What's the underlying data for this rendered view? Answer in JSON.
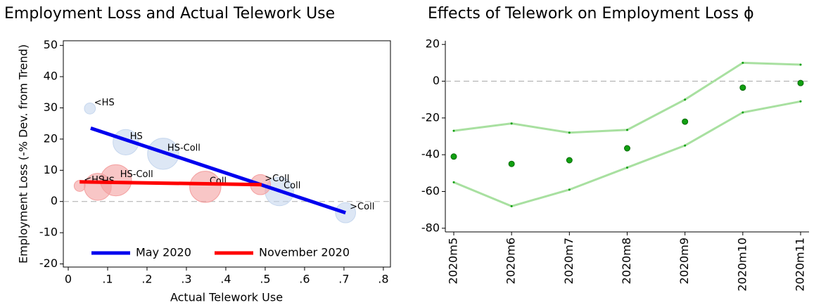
{
  "chart_data": [
    {
      "type": "bubble",
      "title": "Employment Loss and Actual Telework Use",
      "x_label": "Actual Telework Use",
      "y_label": "Employment Loss (-% Dev. from Trend)",
      "xlim": [
        -0.0125,
        0.818
      ],
      "ylim": [
        -21,
        51.5
      ],
      "xticks": [
        0,
        {
          "value": 0.1,
          "label": ".1"
        },
        {
          "value": 0.2,
          "label": ".2"
        },
        {
          "value": 0.3,
          "label": ".3"
        },
        {
          "value": 0.4,
          "label": ".4"
        },
        {
          "value": 0.5,
          "label": ".5"
        },
        {
          "value": 0.6,
          "label": ".6"
        },
        {
          "value": 0.7,
          "label": ".7"
        },
        {
          "value": 0.8,
          "label": ".8"
        }
      ],
      "yticks": [
        -20,
        -10,
        0,
        10,
        20,
        30,
        40,
        50
      ],
      "hline": 0,
      "legend": "bottom",
      "series": [
        {
          "name": "May 2020",
          "color": "#0000ee",
          "fill": "#c6d7ee",
          "label_color": "#1e78d6",
          "labels": [
            "<HS",
            "HS",
            "HS-Coll",
            "Coll",
            ">Coll"
          ],
          "x": [
            0.055,
            0.146,
            0.241,
            0.536,
            0.704
          ],
          "values": [
            29.8,
            19,
            15.3,
            3.2,
            -3.6
          ],
          "sizes": [
            6,
            32,
            48,
            40,
            20
          ],
          "fit": {
            "x": [
              0.057,
              0.704
            ],
            "values": [
              23.5,
              -3.6
            ]
          }
        },
        {
          "name": "November 2020",
          "color": "#ff0000",
          "fill": "#f4a0a0",
          "label_color": "#ff0000",
          "labels": [
            "<HS",
            "HS",
            "HS-Coll",
            "Coll",
            ">Coll"
          ],
          "x": [
            0.029,
            0.075,
            0.121,
            0.348,
            0.488
          ],
          "values": [
            5,
            4.7,
            6.8,
            4.7,
            5.4
          ],
          "sizes": [
            6,
            36,
            48,
            48,
            20
          ],
          "fit": {
            "x": [
              0.029,
              0.491
            ],
            "values": [
              6.3,
              5.4
            ]
          }
        }
      ]
    },
    {
      "type": "scatter",
      "title": "Effects of Telework on Employment Loss ϕ",
      "categories": [
        "2020m5",
        "2020m6",
        "2020m7",
        "2020m8",
        "2020m9",
        "2020m10",
        "2020m11"
      ],
      "ylim": [
        -82,
        22
      ],
      "yticks": [
        -80,
        -60,
        -40,
        -20,
        0,
        20
      ],
      "hline": 0,
      "series": [
        {
          "color": "#a8e0a0",
          "style": "line",
          "values": [
            -27,
            -23,
            -28,
            -26.5,
            -10,
            10,
            9
          ]
        },
        {
          "color": "#a8e0a0",
          "style": "line",
          "values": [
            -55,
            -68,
            -59,
            -47,
            -35,
            -17,
            -11
          ]
        },
        {
          "color": "#11a011",
          "style": "markers",
          "values": [
            -41,
            -45,
            -43,
            -36.5,
            -22,
            -3.5,
            -1
          ]
        }
      ]
    }
  ]
}
